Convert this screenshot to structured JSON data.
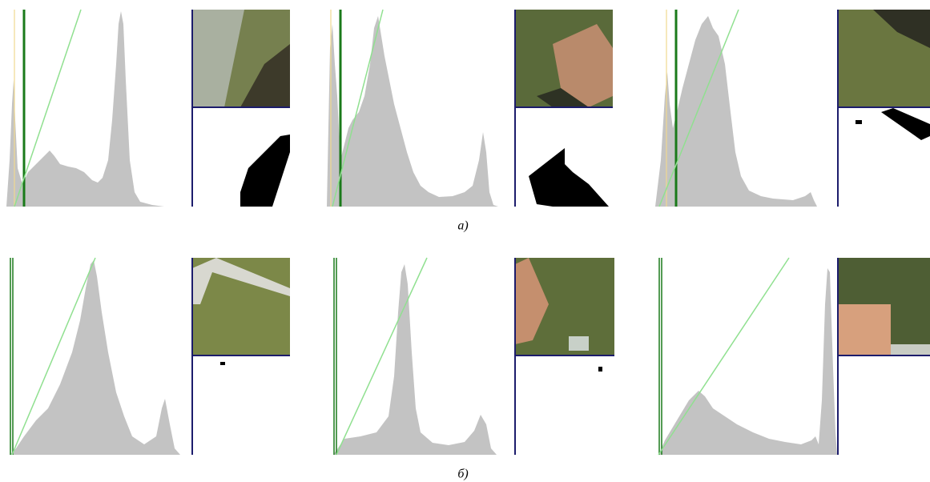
{
  "captions": [
    "а)",
    "б)"
  ]
}
